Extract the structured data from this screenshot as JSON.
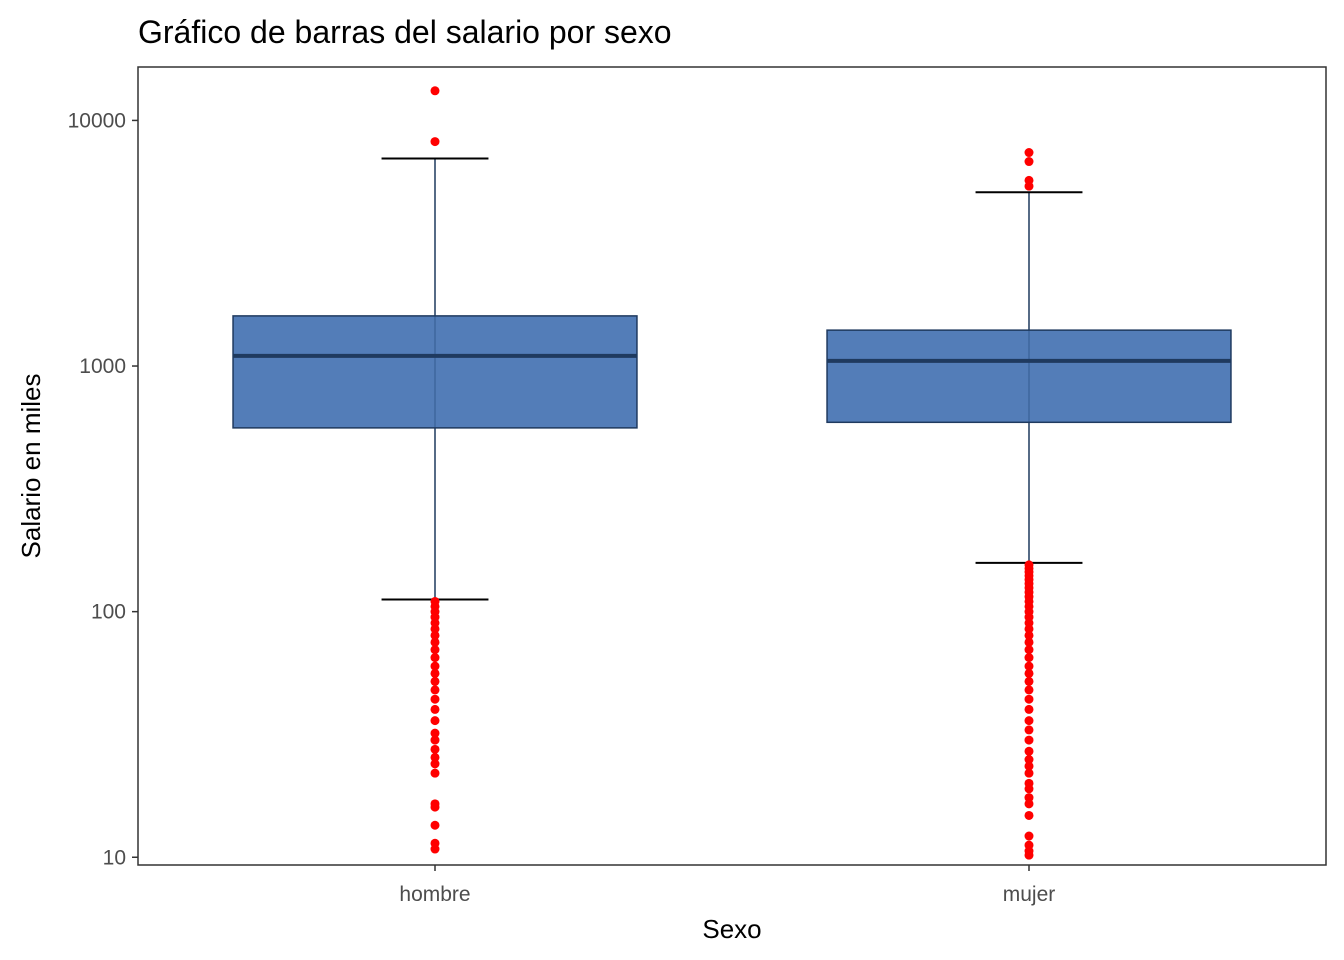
{
  "chart_data": {
    "type": "boxplot",
    "title": "Gráfico de barras del salario por sexo",
    "xlabel": "Sexo",
    "ylabel": "Salario en miles",
    "y_scale": "log10",
    "ylim": [
      9.3,
      16500
    ],
    "yticks": [
      10,
      100,
      1000,
      10000
    ],
    "ytick_labels": [
      "10",
      "100",
      "1000",
      "10000"
    ],
    "categories": [
      "hombre",
      "mujer"
    ],
    "boxes": [
      {
        "category": "hombre",
        "whisker_low": 112,
        "q1": 560,
        "median": 1100,
        "q3": 1600,
        "whisker_high": 7000,
        "outliers_high": [
          8200,
          13200
        ],
        "outliers_low": [
          10.8,
          11.4,
          13.5,
          16,
          16.5,
          22,
          24,
          25.5,
          27.5,
          30,
          32,
          36,
          40,
          44,
          48,
          52,
          56,
          60,
          65,
          70,
          75,
          80,
          85,
          90,
          95,
          100,
          105,
          110
        ]
      },
      {
        "category": "mujer",
        "whisker_low": 158,
        "q1": 590,
        "median": 1050,
        "q3": 1400,
        "whisker_high": 5100,
        "outliers_high": [
          5400,
          5700,
          6800,
          7400
        ],
        "outliers_low": [
          10.2,
          10.6,
          11.2,
          12.2,
          14.8,
          16.5,
          17.5,
          19,
          20,
          22,
          23.5,
          25,
          27,
          30,
          33,
          36,
          40,
          44,
          48,
          52,
          56,
          60,
          65,
          70,
          75,
          80,
          85,
          90,
          95,
          100,
          105,
          110,
          115,
          120,
          125,
          130,
          135,
          140,
          145,
          150,
          155
        ]
      }
    ],
    "colors": {
      "box_fill": "#4a76b4",
      "box_border": "#1f3a5f",
      "median_line": "#1f3a5f",
      "outlier": "#ff0000",
      "panel_border": "#333333"
    },
    "grid": false,
    "legend": "none"
  }
}
